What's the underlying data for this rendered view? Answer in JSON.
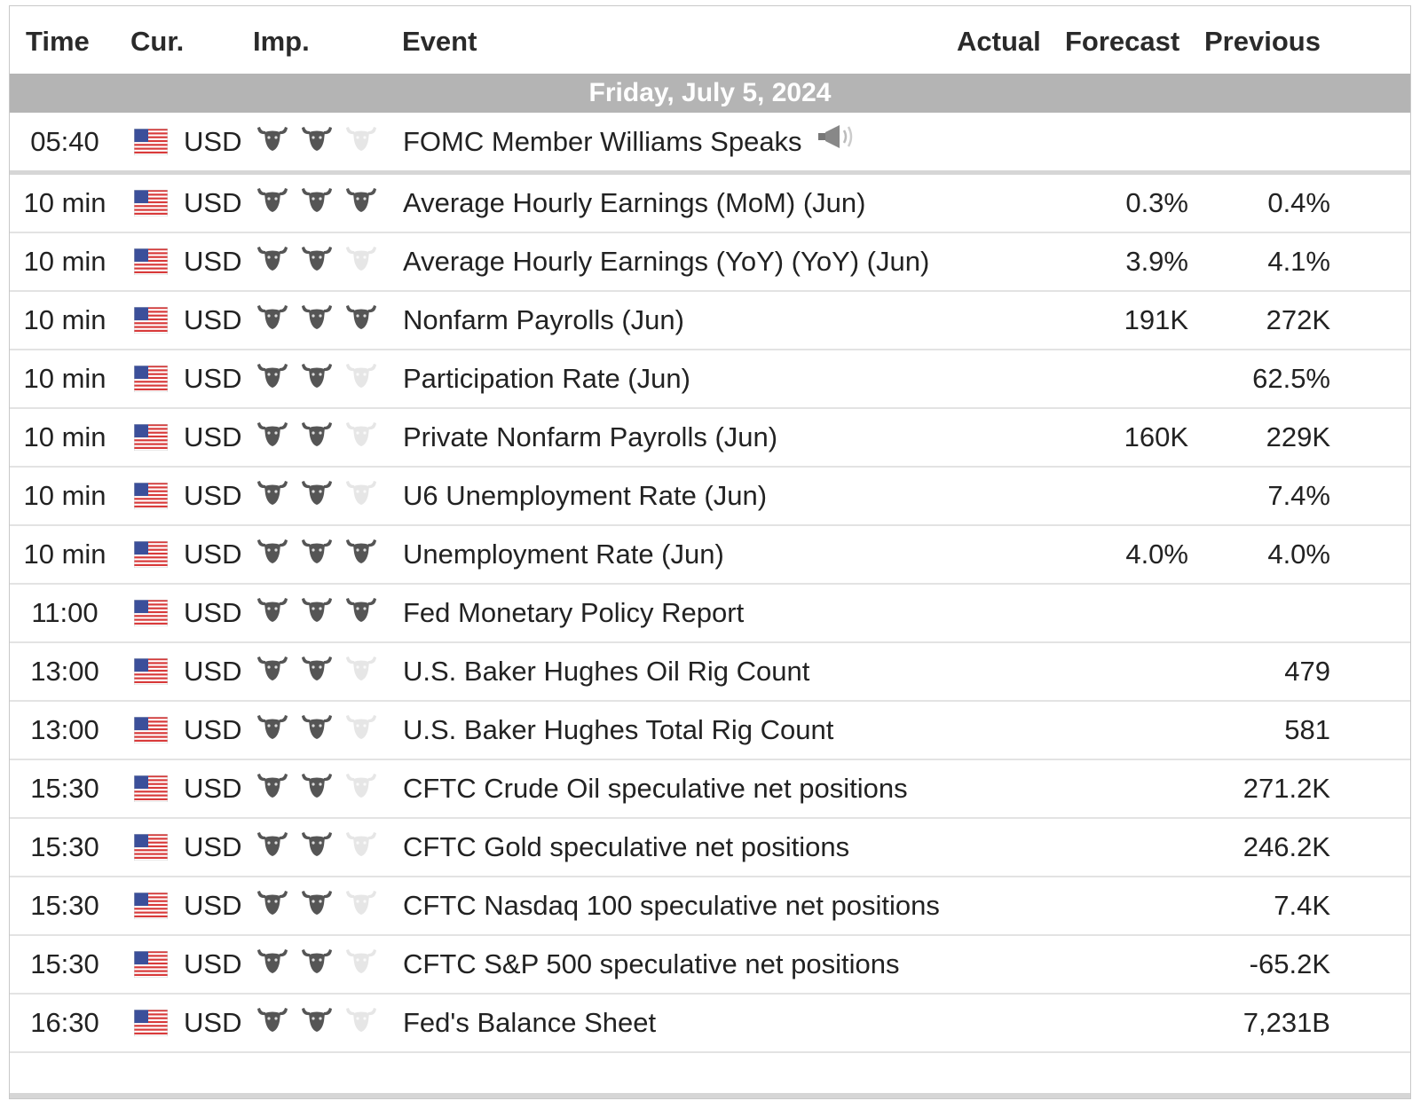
{
  "header": {
    "time": "Time",
    "currency": "Cur.",
    "importance": "Imp.",
    "event": "Event",
    "actual": "Actual",
    "forecast": "Forecast",
    "previous": "Previous"
  },
  "day_label": "Friday, July 5, 2024",
  "colors": {
    "bull_active": "#555555",
    "bull_inactive": "#e6e6e6",
    "day_bar": "#b4b4b4"
  },
  "rows": [
    {
      "time": "05:40",
      "currency": "USD",
      "importance": 2,
      "event": "FOMC Member Williams Speaks",
      "speech_icon": true,
      "actual": "",
      "forecast": "",
      "previous": ""
    },
    {
      "time": "10 min",
      "currency": "USD",
      "importance": 3,
      "event": "Average Hourly Earnings (MoM) (Jun)",
      "actual": "",
      "forecast": "0.3%",
      "previous": "0.4%"
    },
    {
      "time": "10 min",
      "currency": "USD",
      "importance": 2,
      "event": "Average Hourly Earnings (YoY) (YoY) (Jun)",
      "actual": "",
      "forecast": "3.9%",
      "previous": "4.1%"
    },
    {
      "time": "10 min",
      "currency": "USD",
      "importance": 3,
      "event": "Nonfarm Payrolls (Jun)",
      "actual": "",
      "forecast": "191K",
      "previous": "272K"
    },
    {
      "time": "10 min",
      "currency": "USD",
      "importance": 2,
      "event": "Participation Rate (Jun)",
      "actual": "",
      "forecast": "",
      "previous": "62.5%"
    },
    {
      "time": "10 min",
      "currency": "USD",
      "importance": 2,
      "event": "Private Nonfarm Payrolls (Jun)",
      "actual": "",
      "forecast": "160K",
      "previous": "229K"
    },
    {
      "time": "10 min",
      "currency": "USD",
      "importance": 2,
      "event": "U6 Unemployment Rate (Jun)",
      "actual": "",
      "forecast": "",
      "previous": "7.4%"
    },
    {
      "time": "10 min",
      "currency": "USD",
      "importance": 3,
      "event": "Unemployment Rate (Jun)",
      "actual": "",
      "forecast": "4.0%",
      "previous": "4.0%"
    },
    {
      "time": "11:00",
      "currency": "USD",
      "importance": 3,
      "event": "Fed Monetary Policy Report",
      "actual": "",
      "forecast": "",
      "previous": ""
    },
    {
      "time": "13:00",
      "currency": "USD",
      "importance": 2,
      "event": "U.S. Baker Hughes Oil Rig Count",
      "actual": "",
      "forecast": "",
      "previous": "479"
    },
    {
      "time": "13:00",
      "currency": "USD",
      "importance": 2,
      "event": "U.S. Baker Hughes Total Rig Count",
      "actual": "",
      "forecast": "",
      "previous": "581"
    },
    {
      "time": "15:30",
      "currency": "USD",
      "importance": 2,
      "event": "CFTC Crude Oil speculative net positions",
      "actual": "",
      "forecast": "",
      "previous": "271.2K"
    },
    {
      "time": "15:30",
      "currency": "USD",
      "importance": 2,
      "event": "CFTC Gold speculative net positions",
      "actual": "",
      "forecast": "",
      "previous": "246.2K"
    },
    {
      "time": "15:30",
      "currency": "USD",
      "importance": 2,
      "event": "CFTC Nasdaq 100 speculative net positions",
      "actual": "",
      "forecast": "",
      "previous": "7.4K"
    },
    {
      "time": "15:30",
      "currency": "USD",
      "importance": 2,
      "event": "CFTC S&P 500 speculative net positions",
      "actual": "",
      "forecast": "",
      "previous": "-65.2K"
    },
    {
      "time": "16:30",
      "currency": "USD",
      "importance": 2,
      "event": "Fed's Balance Sheet",
      "actual": "",
      "forecast": "",
      "previous": "7,231B"
    }
  ]
}
